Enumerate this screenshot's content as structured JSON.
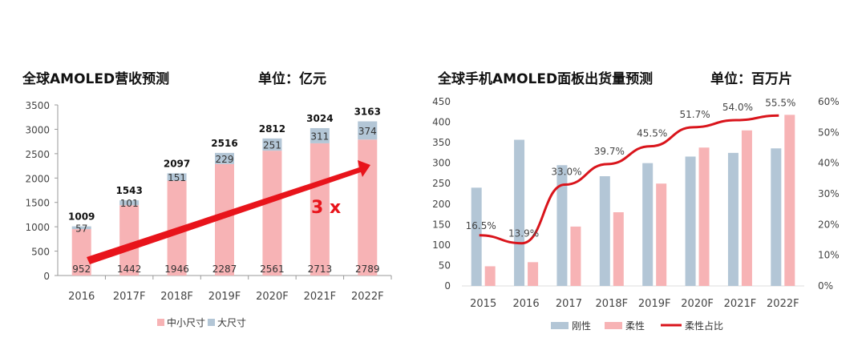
{
  "chart_data": [
    {
      "type": "bar",
      "stacked": true,
      "title": "全球AMOLED营收预测",
      "unit": "单位：亿元",
      "categories": [
        "2016",
        "2017F",
        "2018F",
        "2019F",
        "2020F",
        "2021F",
        "2022F"
      ],
      "series": [
        {
          "name": "中小尺寸",
          "values": [
            952,
            1442,
            1946,
            2287,
            2561,
            2713,
            2789
          ],
          "color": "#f7b3b5"
        },
        {
          "name": "大尺寸",
          "values": [
            57,
            101,
            151,
            229,
            251,
            311,
            374
          ],
          "color": "#b3c6d6"
        }
      ],
      "totals": [
        1009,
        1543,
        2097,
        2516,
        2812,
        3024,
        3163
      ],
      "ylim": [
        0,
        3500
      ],
      "yticks": [
        0,
        500,
        1000,
        1500,
        2000,
        2500,
        3000,
        3500
      ],
      "annotation": "3 x",
      "annotation_color": "#e8141b",
      "legend": "bottom"
    },
    {
      "type": "bar",
      "title": "全球手机AMOLED面板出货量预测",
      "unit": "单位：百万片",
      "categories": [
        "2015",
        "2016",
        "2017",
        "2018F",
        "2019F",
        "2020F",
        "2021F",
        "2022F"
      ],
      "series": [
        {
          "name": "刚性",
          "type": "bar",
          "values": [
            240,
            357,
            295,
            268,
            300,
            316,
            325,
            336
          ],
          "color": "#b3c6d6"
        },
        {
          "name": "柔性",
          "type": "bar",
          "values": [
            48,
            58,
            145,
            180,
            250,
            338,
            380,
            418
          ],
          "color": "#f7b3b5"
        },
        {
          "name": "柔性占比",
          "type": "line",
          "axis": "right",
          "values": [
            16.5,
            13.9,
            33.0,
            39.7,
            45.5,
            51.7,
            54.0,
            55.5
          ],
          "labels": [
            "16.5%",
            "13.9%",
            "33.0%",
            "39.7%",
            "45.5%",
            "51.7%",
            "54.0%",
            "55.5%"
          ],
          "color": "#d9141b"
        }
      ],
      "ylim": [
        0,
        450
      ],
      "yticks": [
        0,
        50,
        100,
        150,
        200,
        250,
        300,
        350,
        400,
        450
      ],
      "y2lim": [
        0,
        60
      ],
      "y2ticks": [
        "0%",
        "10%",
        "20%",
        "30%",
        "40%",
        "50%",
        "60%"
      ],
      "legend": "bottom"
    }
  ]
}
